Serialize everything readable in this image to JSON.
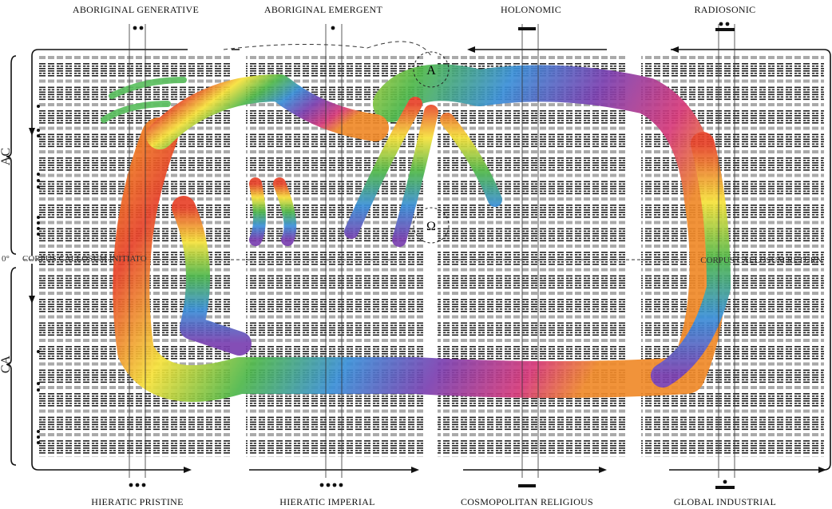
{
  "top_labels": [
    "ABORIGINAL GENERATIVE",
    "ABORIGINAL EMERGENT",
    "HOLONOMIC",
    "RADIOSONIC"
  ],
  "bottom_labels": [
    "HIERATIC PRISTINE",
    "HIERATIC IMPERIAL",
    "COSMOPOLITAN RELIGIOUS",
    "GLOBAL INDUSTRIAL"
  ],
  "side_labels": {
    "upper": "AC",
    "lower": "CA"
  },
  "axis": {
    "zero": "0°",
    "initiate": "CORPUS CALLOSUM INITIATO",
    "return": "CORPUS CALLOSUM RETURN"
  },
  "markers": {
    "alpha": "A",
    "omega": "Ω"
  }
}
